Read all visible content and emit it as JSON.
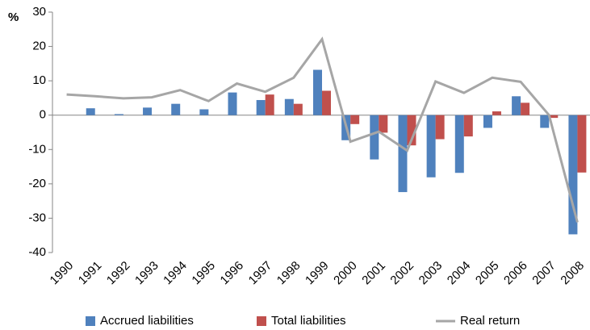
{
  "chart_data": {
    "type": "bar",
    "y_label": "%",
    "categories": [
      "1990",
      "1991",
      "1992",
      "1993",
      "1994",
      "1995",
      "1996",
      "1997",
      "1998",
      "1999",
      "2000",
      "2001",
      "2002",
      "2003",
      "2004",
      "2005",
      "2006",
      "2007",
      "2008"
    ],
    "series": [
      {
        "name": "Accrued liabilities",
        "color": "#4f81bd",
        "values": [
          null,
          2,
          0.3,
          2.2,
          3.3,
          1.7,
          6.6,
          4.4,
          4.7,
          13.2,
          -7.3,
          -12.9,
          -22.4,
          -18.1,
          -16.8,
          -3.7,
          5.5,
          -3.7,
          -34.7
        ]
      },
      {
        "name": "Total liabilities",
        "color": "#c0504d",
        "values": [
          null,
          null,
          null,
          null,
          null,
          null,
          null,
          6.0,
          3.3,
          7.1,
          -2.6,
          -5.1,
          -8.8,
          -7.0,
          -6.2,
          1.1,
          3.6,
          -0.8,
          -16.7
        ]
      },
      {
        "name": "Real return",
        "color": "#a6a6a6",
        "type": "line",
        "values": [
          6.0,
          5.5,
          4.9,
          5.2,
          7.3,
          4.1,
          9.2,
          6.8,
          10.9,
          22.1,
          -7.7,
          -4.8,
          -10.3,
          9.8,
          6.5,
          10.9,
          9.7,
          0.0,
          -31.2
        ]
      }
    ],
    "ylim": [
      -40,
      30
    ],
    "yticks": [
      -40,
      -30,
      -20,
      -10,
      0,
      10,
      20,
      30
    ],
    "grid": false,
    "legend": "bottom"
  }
}
